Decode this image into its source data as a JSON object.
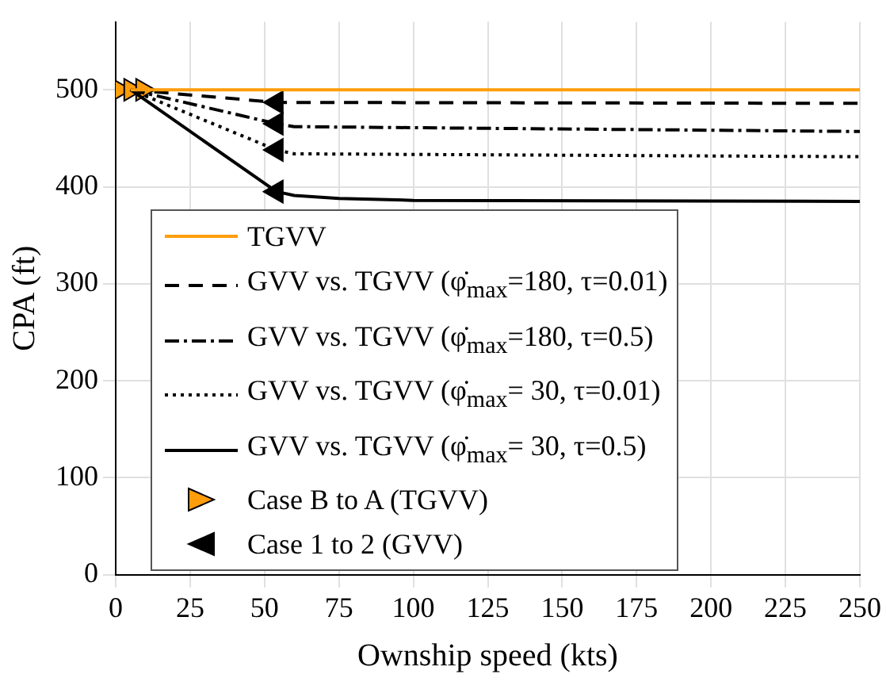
{
  "chart_data": {
    "type": "line",
    "xlabel": "Ownship speed (kts)",
    "ylabel": "CPA (ft)",
    "xlim": [
      0,
      250
    ],
    "xticks": [
      0,
      25,
      50,
      75,
      100,
      125,
      150,
      175,
      200,
      225,
      250
    ],
    "ylim": [
      0,
      570
    ],
    "yticks": [
      0,
      100,
      200,
      300,
      400,
      500
    ],
    "grid": true,
    "legend": "bottom",
    "series": [
      {
        "name": "TGVV",
        "color": "#ff9d0a",
        "line_style": "solid",
        "x": [
          5,
          250
        ],
        "values": [
          500,
          500
        ]
      },
      {
        "name": "GVV vs. TGVV (φ̇$_{max}$=180, τ=0.01)",
        "color": "#000000",
        "line_style": "dashed",
        "x": [
          5,
          54,
          250
        ],
        "values": [
          500,
          487,
          486
        ]
      },
      {
        "name": "GVV vs. TGVV (φ̇$_{max}$=180, τ=0.5)",
        "color": "#000000",
        "line_style": "dashdot",
        "x": [
          5,
          54,
          60,
          250
        ],
        "values": [
          500,
          465,
          462,
          457
        ]
      },
      {
        "name": "GVV vs. TGVV (φ̇$_{max}$= 30, τ=0.01)",
        "color": "#000000",
        "line_style": "dotted",
        "x": [
          5,
          54,
          60,
          250
        ],
        "values": [
          500,
          438,
          434,
          431
        ]
      },
      {
        "name": "GVV vs. TGVV (φ̇$_{max}$= 30, τ=0.5)",
        "color": "#000000",
        "line_style": "solid",
        "x": [
          5,
          54,
          60,
          75,
          100,
          250
        ],
        "values": [
          500,
          395,
          391,
          388,
          386,
          385
        ]
      },
      {
        "name": "Case B to A (TGVV)",
        "type": "scatter",
        "marker": "triangle",
        "color": "#ff9d0a",
        "x": [
          1,
          5,
          9
        ],
        "values": [
          500,
          500,
          500
        ]
      },
      {
        "name": "Case 1 to 2 (GVV)",
        "type": "scatter",
        "marker": "triangle",
        "color": "#000000",
        "x": [
          54,
          54,
          54,
          54
        ],
        "values": [
          487,
          465,
          438,
          395
        ]
      }
    ]
  }
}
